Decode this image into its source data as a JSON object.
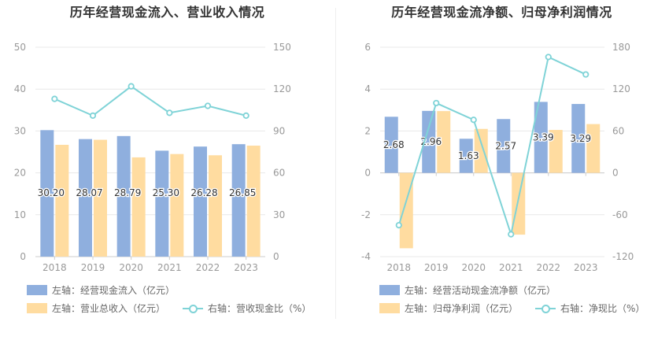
{
  "colors": {
    "bar_primary": "#8fafde",
    "bar_secondary": "#ffdca0",
    "line": "#7fd3d7",
    "axis_text": "#999999",
    "grid": "#e8e8e8"
  },
  "chart_data": [
    {
      "type": "bar",
      "title": "历年经营现金流入、营业收入情况",
      "categories": [
        "2018",
        "2019",
        "2020",
        "2021",
        "2022",
        "2023"
      ],
      "y_left": {
        "ticks": [
          "0",
          "10",
          "20",
          "30",
          "40",
          "50"
        ],
        "ylim": [
          0,
          50
        ]
      },
      "y_right": {
        "ticks": [
          "0",
          "30",
          "60",
          "90",
          "120",
          "150"
        ],
        "ylim": [
          0,
          150
        ]
      },
      "series": [
        {
          "name": "左轴：经营现金流入（亿元）",
          "type": "bar",
          "axis": "left",
          "values": [
            30.2,
            28.07,
            28.79,
            25.3,
            26.28,
            26.85
          ],
          "labels": [
            "30.20",
            "28.07",
            "28.79",
            "25.30",
            "26.28",
            "26.85"
          ]
        },
        {
          "name": "左轴：营业总收入（亿元）",
          "type": "bar",
          "axis": "left",
          "values": [
            26.7,
            27.9,
            23.7,
            24.5,
            24.2,
            26.5
          ]
        },
        {
          "name": "右轴：营收现金比（%）",
          "type": "line",
          "axis": "right",
          "values": [
            113,
            101,
            122,
            103,
            108,
            101
          ]
        }
      ],
      "grid": true,
      "legend_position": "bottom-left"
    },
    {
      "type": "bar",
      "title": "历年经营现金流净额、归母净利润情况",
      "categories": [
        "2018",
        "2019",
        "2020",
        "2021",
        "2022",
        "2023"
      ],
      "y_left": {
        "ticks": [
          "-4",
          "-2",
          "0",
          "2",
          "4",
          "6"
        ],
        "ylim": [
          -4,
          6
        ]
      },
      "y_right": {
        "ticks": [
          "-120",
          "-60",
          "0",
          "60",
          "120",
          "180"
        ],
        "ylim": [
          -120,
          180
        ]
      },
      "series": [
        {
          "name": "左轴：经营活动现金流净额（亿元）",
          "type": "bar",
          "axis": "left",
          "values": [
            2.68,
            2.96,
            1.63,
            2.57,
            3.39,
            3.29
          ],
          "labels": [
            "2.68",
            "2.96",
            "1.63",
            "2.57",
            "3.39",
            "3.29"
          ]
        },
        {
          "name": "左轴：归母净利润（亿元）",
          "type": "bar",
          "axis": "left",
          "values": [
            -3.6,
            2.95,
            2.1,
            -2.95,
            2.05,
            2.33
          ]
        },
        {
          "name": "右轴：净现比（%）",
          "type": "line",
          "axis": "right",
          "values": [
            -75,
            100,
            76,
            -88,
            166,
            141
          ]
        }
      ],
      "grid": true,
      "legend_position": "bottom-left"
    }
  ]
}
